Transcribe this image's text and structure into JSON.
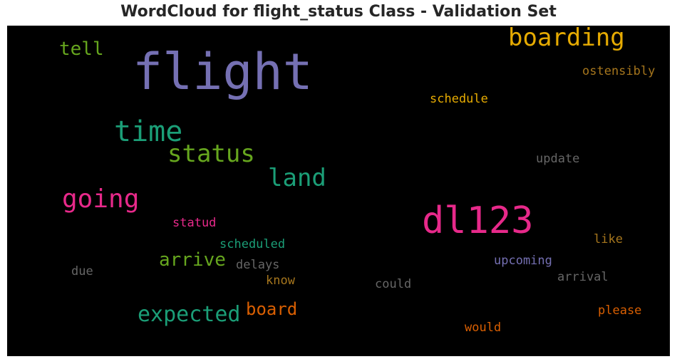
{
  "title": "WordCloud for flight_status Class - Validation Set",
  "words": [
    {
      "text": "flight",
      "color": "#7570b3"
    },
    {
      "text": "boarding",
      "color": "#e6ab02"
    },
    {
      "text": "tell",
      "color": "#66a61e"
    },
    {
      "text": "ostensibly",
      "color": "#a6761d"
    },
    {
      "text": "schedule",
      "color": "#e6ab02"
    },
    {
      "text": "time",
      "color": "#1b9e77"
    },
    {
      "text": "status",
      "color": "#66a61e"
    },
    {
      "text": "land",
      "color": "#1b9e77"
    },
    {
      "text": "update",
      "color": "#666666"
    },
    {
      "text": "going",
      "color": "#e7298a"
    },
    {
      "text": "dl123",
      "color": "#e7298a"
    },
    {
      "text": "statud",
      "color": "#e7298a"
    },
    {
      "text": "scheduled",
      "color": "#1b9e77"
    },
    {
      "text": "like",
      "color": "#a6761d"
    },
    {
      "text": "arrive",
      "color": "#66a61e"
    },
    {
      "text": "delays",
      "color": "#666666"
    },
    {
      "text": "upcoming",
      "color": "#7570b3"
    },
    {
      "text": "due",
      "color": "#666666"
    },
    {
      "text": "know",
      "color": "#a6761d"
    },
    {
      "text": "arrival",
      "color": "#666666"
    },
    {
      "text": "could",
      "color": "#666666"
    },
    {
      "text": "expected",
      "color": "#1b9e77"
    },
    {
      "text": "board",
      "color": "#d95f02"
    },
    {
      "text": "please",
      "color": "#d95f02"
    },
    {
      "text": "would",
      "color": "#d95f02"
    }
  ]
}
